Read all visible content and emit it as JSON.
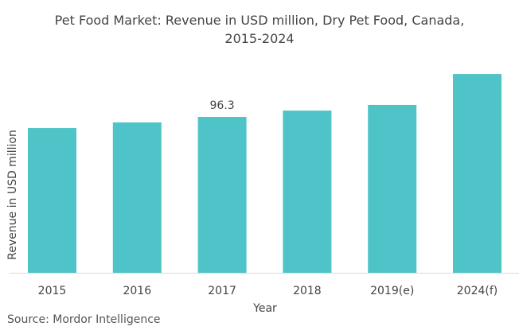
{
  "chart_data": {
    "type": "bar",
    "title_line1": "Pet Food Market: Revenue in USD million, Dry Pet Food, Canada,",
    "title_line2": "2015-2024",
    "categories": [
      "2015",
      "2016",
      "2017",
      "2018",
      "2019(e)",
      "2024(f)"
    ],
    "values": [
      89.4,
      92.9,
      96.3,
      100.2,
      103.7,
      122.8
    ],
    "data_labels": [
      null,
      null,
      "96.3",
      null,
      null,
      null
    ],
    "xlabel": "Year",
    "ylabel": "Revenue in USD million",
    "ylim": [
      0,
      130
    ],
    "grid": false,
    "bar_color": "#4fc4c8",
    "source": "Source: Mordor Intelligence"
  }
}
